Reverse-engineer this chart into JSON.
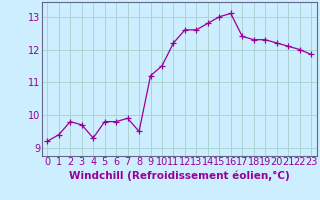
{
  "x": [
    0,
    1,
    2,
    3,
    4,
    5,
    6,
    7,
    8,
    9,
    10,
    11,
    12,
    13,
    14,
    15,
    16,
    17,
    18,
    19,
    20,
    21,
    22,
    23
  ],
  "y": [
    9.2,
    9.4,
    9.8,
    9.7,
    9.3,
    9.8,
    9.8,
    9.9,
    9.5,
    11.2,
    11.5,
    12.2,
    12.6,
    12.6,
    12.8,
    13.0,
    13.1,
    12.4,
    12.3,
    12.3,
    12.2,
    12.1,
    12.0,
    11.85
  ],
  "line_color": "#990099",
  "marker_color": "#990099",
  "bg_color": "#cceeff",
  "grid_color": "#aad4d4",
  "xlabel": "Windchill (Refroidissement éolien,°C)",
  "xlabel_color": "#990099",
  "tick_color": "#990099",
  "spine_color": "#666688",
  "ylim": [
    8.75,
    13.45
  ],
  "xlim": [
    -0.5,
    23.5
  ],
  "yticks": [
    9,
    10,
    11,
    12,
    13
  ],
  "xticks": [
    0,
    1,
    2,
    3,
    4,
    5,
    6,
    7,
    8,
    9,
    10,
    11,
    12,
    13,
    14,
    15,
    16,
    17,
    18,
    19,
    20,
    21,
    22,
    23
  ],
  "line_width": 0.9,
  "marker_size": 4.0,
  "font_size": 7.0,
  "xlabel_fontsize": 7.5
}
